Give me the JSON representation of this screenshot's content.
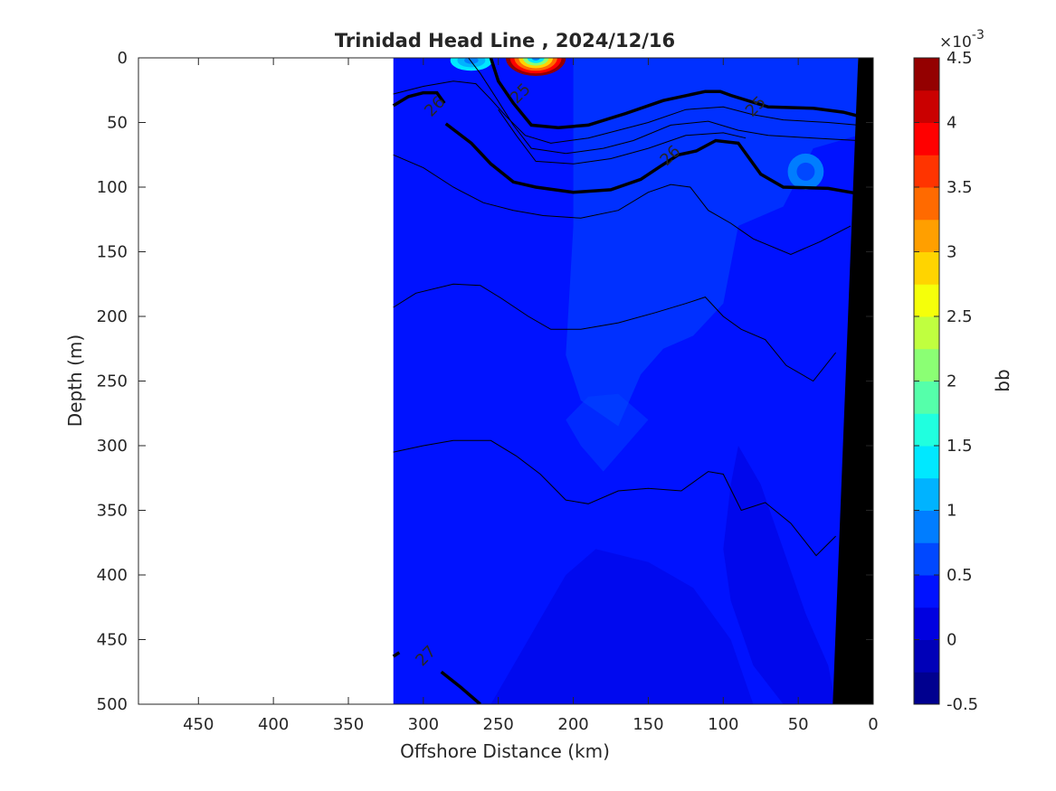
{
  "chart_data": {
    "type": "heatmap",
    "title": "Trinidad Head Line , 2024/12/16",
    "xlabel": "Offshore Distance (km)",
    "ylabel": "Depth (m)",
    "xlim": [
      490,
      0
    ],
    "ylim": [
      0,
      500
    ],
    "x_reversed": true,
    "y_reversed": true,
    "x_ticks": [
      450,
      400,
      350,
      300,
      250,
      200,
      150,
      100,
      50,
      0
    ],
    "y_ticks": [
      0,
      50,
      100,
      150,
      200,
      250,
      300,
      350,
      400,
      450,
      500
    ],
    "data_extent_km": [
      320,
      0
    ],
    "colorbar": {
      "label": "bb",
      "exponent_label": "×10",
      "exponent_value": "-3",
      "range": [
        -0.5,
        4.5
      ],
      "ticks": [
        "4.5",
        "4",
        "3.5",
        "3",
        "2.5",
        "2",
        "1.5",
        "1",
        "0.5",
        "0",
        "-0.5"
      ],
      "levels": 20,
      "colors": [
        "#00008f",
        "#0000b8",
        "#0000e0",
        "#0012ff",
        "#0048ff",
        "#007dff",
        "#00b3ff",
        "#00e8ff",
        "#20ffdf",
        "#55ffaa",
        "#8bff74",
        "#c0ff3f",
        "#f5ff0a",
        "#ffd400",
        "#ff9f00",
        "#ff6a00",
        "#ff3400",
        "#ff0000",
        "#ca0000",
        "#940000"
      ]
    },
    "isopycnal_labels": [
      {
        "value": "25",
        "x_km": 235,
        "depth_m": 28
      },
      {
        "value": "25",
        "x_km": 78,
        "depth_m": 38
      },
      {
        "value": "26",
        "x_km": 292,
        "depth_m": 38
      },
      {
        "value": "26",
        "x_km": 135,
        "depth_m": 76
      },
      {
        "value": "27",
        "x_km": 298,
        "depth_m": 463
      }
    ],
    "contours_bold": [
      {
        "level": "25",
        "points": [
          [
            255,
            0
          ],
          [
            250,
            18
          ],
          [
            240,
            35
          ],
          [
            228,
            52
          ],
          [
            210,
            54
          ],
          [
            190,
            52
          ],
          [
            165,
            43
          ],
          [
            140,
            33
          ],
          [
            112,
            26
          ],
          [
            102,
            26
          ],
          [
            95,
            29
          ],
          [
            70,
            38
          ],
          [
            40,
            39
          ],
          [
            20,
            42
          ],
          [
            10,
            45
          ]
        ]
      },
      {
        "level": "26a",
        "points": [
          [
            320,
            37
          ],
          [
            310,
            30
          ],
          [
            300,
            27
          ],
          [
            291,
            27
          ],
          [
            286,
            35
          ]
        ]
      },
      {
        "level": "26b",
        "points": [
          [
            285,
            51
          ],
          [
            268,
            66
          ],
          [
            255,
            82
          ],
          [
            240,
            96
          ],
          [
            225,
            100
          ],
          [
            200,
            104
          ],
          [
            175,
            102
          ],
          [
            155,
            94
          ],
          [
            142,
            84
          ],
          [
            130,
            75
          ],
          [
            118,
            72
          ],
          [
            105,
            64
          ],
          [
            90,
            66
          ],
          [
            75,
            90
          ],
          [
            60,
            100
          ],
          [
            30,
            101
          ],
          [
            10,
            105
          ]
        ]
      },
      {
        "level": "27",
        "points": [
          [
            320,
            463
          ],
          [
            316,
            460
          ]
        ]
      },
      {
        "level": "27b",
        "points": [
          [
            288,
            475
          ],
          [
            275,
            487
          ],
          [
            262,
            500
          ]
        ]
      }
    ],
    "contours_thin": [
      [
        [
          320,
          28
        ],
        [
          300,
          22
        ],
        [
          280,
          18
        ],
        [
          265,
          20
        ],
        [
          255,
          32
        ],
        [
          245,
          45
        ],
        [
          232,
          60
        ],
        [
          215,
          66
        ],
        [
          190,
          62
        ],
        [
          170,
          56
        ],
        [
          150,
          50
        ],
        [
          125,
          40
        ],
        [
          100,
          38
        ],
        [
          80,
          44
        ],
        [
          60,
          48
        ],
        [
          30,
          50
        ],
        [
          10,
          52
        ]
      ],
      [
        [
          270,
          0
        ],
        [
          262,
          12
        ],
        [
          252,
          30
        ],
        [
          240,
          52
        ],
        [
          228,
          70
        ],
        [
          205,
          74
        ],
        [
          180,
          70
        ],
        [
          160,
          64
        ],
        [
          135,
          52
        ],
        [
          110,
          49
        ],
        [
          90,
          56
        ],
        [
          70,
          60
        ],
        [
          40,
          62
        ],
        [
          10,
          64
        ]
      ],
      [
        [
          250,
          40
        ],
        [
          238,
          60
        ],
        [
          225,
          80
        ],
        [
          200,
          82
        ],
        [
          175,
          78
        ],
        [
          150,
          70
        ],
        [
          125,
          60
        ],
        [
          100,
          58
        ],
        [
          85,
          62
        ]
      ],
      [
        [
          320,
          75
        ],
        [
          300,
          85
        ],
        [
          280,
          100
        ],
        [
          260,
          112
        ],
        [
          240,
          118
        ],
        [
          220,
          122
        ],
        [
          195,
          124
        ],
        [
          170,
          118
        ],
        [
          150,
          104
        ],
        [
          135,
          98
        ],
        [
          122,
          100
        ],
        [
          110,
          118
        ],
        [
          95,
          128
        ],
        [
          80,
          140
        ],
        [
          55,
          152
        ],
        [
          35,
          142
        ],
        [
          15,
          130
        ]
      ],
      [
        [
          320,
          193
        ],
        [
          305,
          182
        ],
        [
          280,
          175
        ],
        [
          262,
          176
        ],
        [
          248,
          186
        ],
        [
          230,
          200
        ],
        [
          215,
          210
        ],
        [
          195,
          210
        ],
        [
          170,
          205
        ],
        [
          145,
          197
        ],
        [
          125,
          190
        ],
        [
          112,
          185
        ],
        [
          100,
          200
        ],
        [
          88,
          210
        ],
        [
          72,
          218
        ],
        [
          58,
          238
        ],
        [
          40,
          250
        ],
        [
          25,
          228
        ]
      ],
      [
        [
          320,
          305
        ],
        [
          300,
          300
        ],
        [
          280,
          296
        ],
        [
          255,
          296
        ],
        [
          238,
          308
        ],
        [
          222,
          322
        ],
        [
          205,
          342
        ],
        [
          190,
          345
        ],
        [
          170,
          335
        ],
        [
          150,
          333
        ],
        [
          128,
          335
        ],
        [
          110,
          320
        ],
        [
          100,
          322
        ],
        [
          88,
          350
        ],
        [
          72,
          344
        ],
        [
          55,
          360
        ],
        [
          38,
          385
        ],
        [
          25,
          370
        ]
      ]
    ],
    "blobs": [
      {
        "x_km": 225,
        "depth_m": 0,
        "rx_km": 20,
        "ry_m": 14,
        "colors": [
          "#940000",
          "#ff0000",
          "#ff6a00",
          "#ffd400",
          "#8bff74",
          "#00e8ff",
          "#007dff"
        ]
      },
      {
        "x_km": 268,
        "depth_m": 2,
        "rx_km": 14,
        "ry_m": 8,
        "colors": [
          "#00e8ff",
          "#00b3ff",
          "#007dff"
        ]
      },
      {
        "x_km": 45,
        "depth_m": 88,
        "rx_km": 12,
        "ry_m": 14,
        "colors": [
          "#007dff",
          "#0048ff"
        ]
      }
    ],
    "bottom_topography": [
      [
        10,
        0
      ],
      [
        0,
        0
      ],
      [
        0,
        500
      ],
      [
        27,
        500
      ]
    ]
  }
}
